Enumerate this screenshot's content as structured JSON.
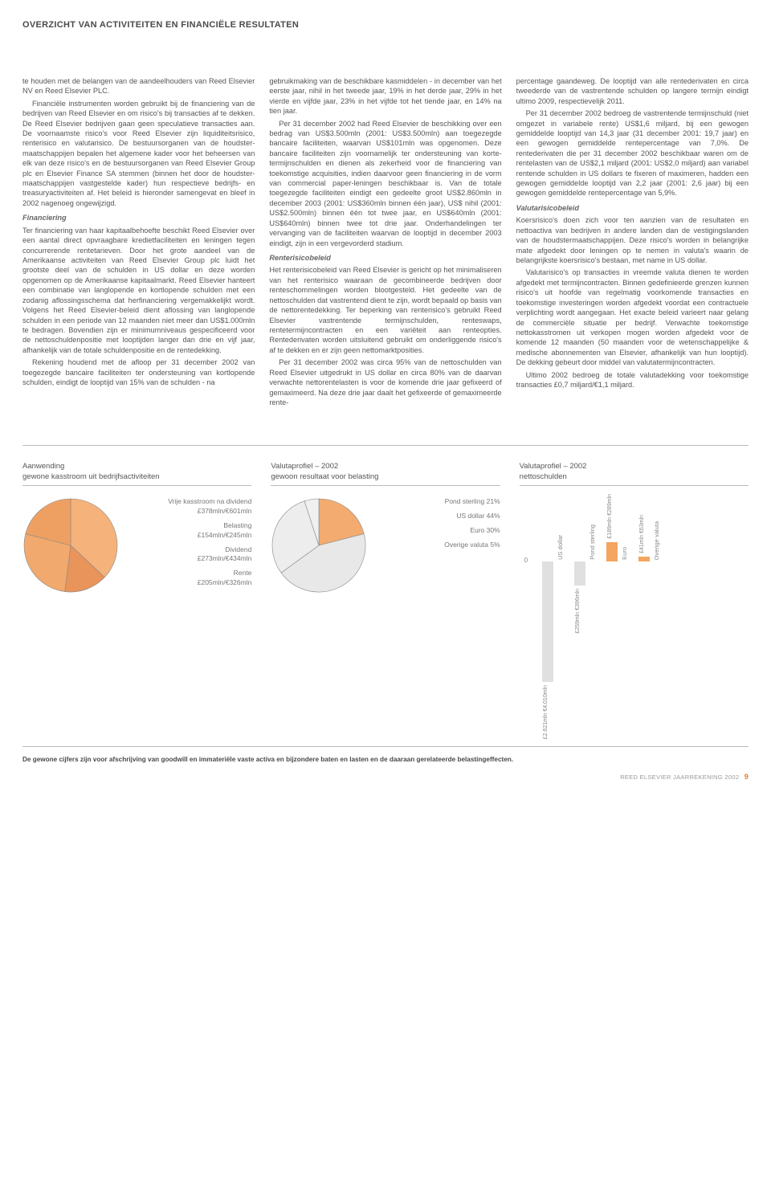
{
  "header": {
    "title": "OVERZICHT VAN ACTIVITEITEN EN FINANCIËLE RESULTATEN"
  },
  "body": {
    "col1": {
      "p1": "te houden met de belangen van de aandeelhouders van Reed Elsevier NV en Reed Elsevier PLC.",
      "p2": "Financiële instrumenten worden gebruikt bij de financiering van de bedrijven van Reed Elsevier en om risico's bij transacties af te dekken. De Reed Elsevier bedrijven gaan geen speculatieve transacties aan. De voornaamste risico's voor Reed Elsevier zijn liquiditeitsrisico, renterisico en valutarisico. De bestuurs­organen van de houdster­maatschappijen bepalen het algemene kader voor het beheersen van elk van deze risico's en de bestuursorganen van Reed Elsevier Group plc en Elsevier Finance SA stemmen (binnen het door de houdster­maatschappijen vastgestelde kader) hun respectieve bedrijfs- en treasury­activiteiten af. Het beleid is hieronder samengevat en bleef in 2002 nagenoeg ongewijzigd.",
      "sub": "Financiering",
      "p3": "Ter financiering van haar kapitaalbehoefte beschikt Reed Elsevier over een aantal direct opvraagbare kredietfaciliteiten en leningen tegen concurrerende rentetarieven. Door het grote aandeel van de Amerikaanse activiteiten van Reed Elsevier Group plc luidt het grootste deel van de schulden in US dollar en deze worden opgenomen op de Amerikaanse kapitaalmarkt. Reed Elsevier hanteert een combinatie van langlopende en kortlopende schulden met een zodanig aflossingsschema dat herfinanciering vergemakkelijkt wordt. Volgens het Reed Elsevier-beleid dient aflossing van langlopende schulden in een periode van 12 maanden niet meer dan US$1.000mln te bedragen. Bovendien zijn er minimumniveaus gespecificeerd voor de nettoschulden­positie met looptijden langer dan drie en vijf jaar, afhankelijk van de totale schuldenpositie en de rentedekking.",
      "p4": "Rekening houdend met de afloop per 31 december 2002 van toegezegde bancaire faciliteiten ter ondersteuning van kortlopende schulden, eindigt de looptijd van 15% van de schulden - na"
    },
    "col2": {
      "p1": "gebruikmaking van de beschikbare kasmiddelen - in december van het eerste jaar, nihil in het tweede jaar, 19% in het derde jaar, 29% in het vierde en vijfde jaar, 23% in het vijfde tot het tiende jaar, en 14% na tien jaar.",
      "p2": "Per 31 december 2002 had Reed Elsevier de beschikking over een bedrag van US$3.500mln (2001: US$3.500mln) aan toegezegde bancaire faciliteiten, waarvan US$101mln was opgenomen. Deze bancaire faciliteiten zijn voor­namelijk ter ondersteuning van korte­termijnschulden en dienen als zekerheid voor de financiering van toekomstige acquisities, indien daarvoor geen financiering in de vorm van commercial paper-leningen beschikbaar is. Van de totale toegezegde faciliteiten eindigt een gedeelte groot US$2.860mln in december 2003 (2001: US$360mln binnen één jaar), US$ nihil (2001: US$2.500mln) binnen één tot twee jaar, en US$640mln (2001: US$640mln) binnen twee tot drie jaar. Onderhandelingen ter vervanging van de faciliteiten waarvan de looptijd in december 2003 eindigt, zijn in een vergevorderd stadium.",
      "sub": "Renterisicobeleid",
      "p3": "Het renterisicobeleid van Reed Elsevier is gericht op het minimaliseren van het renterisico waaraan de gecombineerde bedrijven door renteschommelingen worden blootgesteld. Het gedeelte van de nettoschulden dat vastrentend dient te zijn, wordt bepaald op basis van de nettorentedekking. Ter beperking van renterisico's gebruikt Reed Elsevier vastrentende termijnschulden, rente­swaps, rentetermijncontracten en een variëteit aan renteopties. Rentederivaten worden uitsluitend gebruikt om onderliggende risico's af te dekken en er zijn geen nettomarktposities.",
      "p4": "Per 31 december 2002 was circa 95% van de nettoschulden van Reed Elsevier uitgedrukt in US dollar en circa 80% van de daarvan verwachte nettorente­lasten is voor de komende drie jaar gefixeerd of gemaximeerd. Na deze drie jaar daalt het gefixeerde of gemaximeerde rente-"
    },
    "col3": {
      "p1": "percentage gaandeweg. De looptijd van alle rentederivaten en circa tweederde van de vastrentende schulden op langere termijn eindigt ultimo 2009, respectievelijk 2011.",
      "p2": "Per 31 december 2002 bedroeg de vast­rentende termijnschuld (niet omgezet in variabele rente) US$1,6 miljard, bij een gewogen gemiddelde looptijd van 14,3 jaar (31 december 2001: 19,7 jaar) en een gewogen gemiddelde rentepercentage van 7,0%. De rentederivaten die per 31 december 2002 beschikbaar waren om de rentelasten van de US$2,1 miljard (2001: US$2,0 miljard) aan variabel rentende schulden in US dollars te fixeren of maximeren, hadden een gewogen gemiddelde looptijd van 2,2 jaar (2001: 2,6 jaar) bij een gewogen gemiddelde rentepercentage van 5,9%.",
      "sub": "Valutarisicobeleid",
      "p3": "Koersrisico's doen zich voor ten aanzien van de resultaten en nettoactiva van bedrijven in andere landen dan de vestigingslanden van de houdster­maatschappijen. Deze risico's worden in belangrijke mate afgedekt door leningen op te nemen in valuta's waarin de belangrijkste koersrisico's bestaan, met name in US dollar.",
      "p4": "Valutarisico's op transacties in vreemde valuta dienen te worden afgedekt met termijncontracten. Binnen gedefinieerde grenzen kunnen risico's uit hoofde van regelmatig voorkomende transacties en toekomstige investeringen worden afgedekt voordat een contractuele verplichting wordt aangegaan. Het exacte beleid varieert naar gelang de commerciële situatie per bedrijf. Verwachte toekomstige nettokasstromen uit verkopen mogen worden afgedekt voor de komende 12 maanden (50 maanden voor de wetenschappelijke & medische abonnementen van Elsevier, afhankelijk van hun looptijd). De dekking gebeurt door middel van valutatermijncontracten.",
      "p5": "Ultimo 2002 bedroeg de totale valuta­dekking voor toekomstige transacties £0,7 miljard/€1,1 miljard."
    }
  },
  "charts": {
    "panel1": {
      "title_l1": "Aanwending",
      "title_l2": "gewone kasstroom uit bedrijfsactiviteiten",
      "pie": {
        "type": "pie",
        "slices": [
          {
            "label": "Vrije kasstroom na dividend",
            "value": "£378mln/€601mln",
            "pct": 37,
            "color": "#f5b27a"
          },
          {
            "label": "Belasting",
            "value": "£154mln/€245mln",
            "pct": 15,
            "color": "#e9945a"
          },
          {
            "label": "Dividend",
            "value": "£273mln/€434mln",
            "pct": 27,
            "color": "#f2a96d"
          },
          {
            "label": "Rente",
            "value": "£205mln/€326mln",
            "pct": 21,
            "color": "#eea062"
          }
        ],
        "outline": "#888888",
        "size": 120
      }
    },
    "panel2": {
      "title_l1": "Valutaprofiel – 2002",
      "title_l2": "gewoon resultaat voor belasting",
      "pie": {
        "type": "pie",
        "slices": [
          {
            "label": "Pond sterling 21%",
            "pct": 21,
            "color": "#f3ab6f"
          },
          {
            "label": "US dollar 44%",
            "pct": 44,
            "color": "#e8e8e8"
          },
          {
            "label": "Euro 30%",
            "pct": 30,
            "color": "#ededed"
          },
          {
            "label": "Overige valuta 5%",
            "pct": 5,
            "color": "#f0f0f0"
          }
        ],
        "outline": "#888888",
        "size": 120
      }
    },
    "panel3": {
      "title_l1": "Valutaprofiel – 2002",
      "title_l2": "nettoschulden",
      "bar": {
        "type": "bar",
        "axis_zero_label": "0",
        "bars": [
          {
            "name": "US dollar",
            "neg": 150,
            "pos": 0,
            "neg_val": "£2.621mln\n€4.010mln",
            "neg_color": "#e0e0e0"
          },
          {
            "name": "Pond sterling",
            "neg": 30,
            "pos": 0,
            "neg_val": "£259mln\n€396mln",
            "neg_color": "#e0e0e0"
          },
          {
            "name": "Euro",
            "neg": 0,
            "pos": 24,
            "pos_val": "£189mln\n€289mln",
            "pos_color": "#f4a560"
          },
          {
            "name": "Overige valuta",
            "neg": 0,
            "pos": 6,
            "pos_val": "£41mln\n€63mln",
            "pos_color": "#f4a560"
          }
        ]
      }
    }
  },
  "footnote": "De gewone cijfers zijn voor afschrijving van goodwill en immateriële vaste activa en bijzondere baten en lasten en de daaraan gerelateerde belastingeffecten.",
  "footer": {
    "text": "REED ELSEVIER JAARREKENING 2002",
    "page": "9"
  }
}
